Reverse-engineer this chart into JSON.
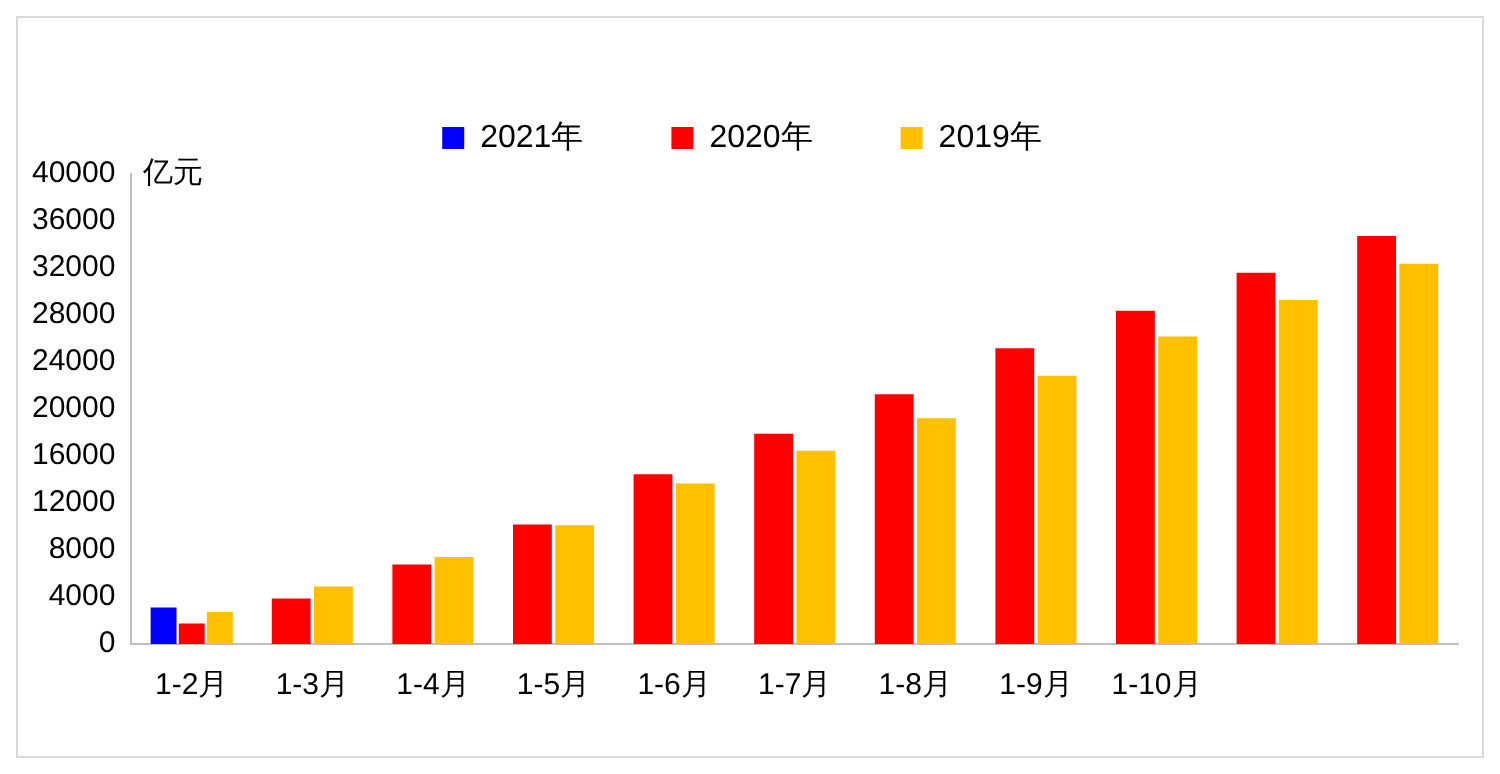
{
  "chart_data": {
    "type": "bar",
    "ylabel": "亿元",
    "categories": [
      "1-2月",
      "1-3月",
      "1-4月",
      "1-5月",
      "1-6月",
      "1-7月",
      "1-8月",
      "1-9月",
      "1-10月",
      null,
      null
    ],
    "series": [
      {
        "name": "2021年",
        "color": "#0000ff",
        "values": [
          3100,
          null,
          null,
          null,
          null,
          null,
          null,
          null,
          null,
          null,
          null
        ]
      },
      {
        "name": "2020年",
        "color": "#ff0000",
        "values": [
          1750,
          3870,
          6770,
          10180,
          14440,
          17890,
          21250,
          25180,
          28370,
          31600,
          34720
        ]
      },
      {
        "name": "2019年",
        "color": "#ffc000",
        "values": [
          2720,
          4900,
          7410,
          10100,
          13670,
          16450,
          19210,
          22840,
          26160,
          29270,
          32370
        ]
      }
    ],
    "ylim": [
      0,
      40000
    ],
    "yticks": [
      0,
      4000,
      8000,
      12000,
      16000,
      20000,
      24000,
      28000,
      32000,
      36000,
      40000
    ],
    "grid": false,
    "legend": "top"
  }
}
